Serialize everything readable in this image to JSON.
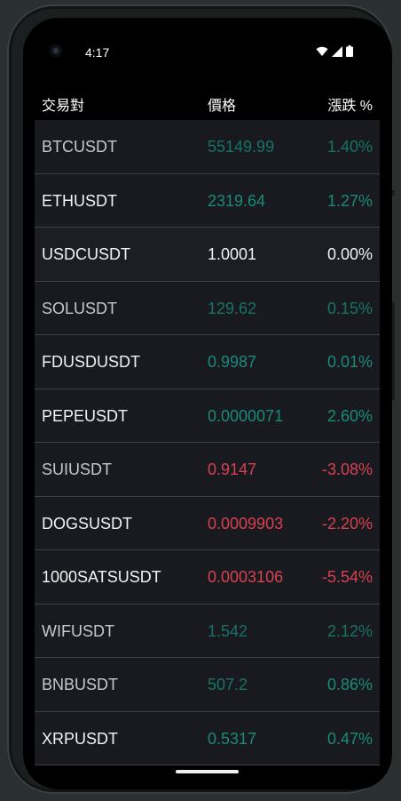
{
  "status_bar": {
    "time": "4:17"
  },
  "header": {
    "pair_label": "交易對",
    "price_label": "價格",
    "change_label": "漲跌 %"
  },
  "tickers": [
    {
      "symbol": "BTCUSDT",
      "price": "55149.99",
      "change": "1.40%",
      "trend": "up"
    },
    {
      "symbol": "ETHUSDT",
      "price": "2319.64",
      "change": "1.27%",
      "trend": "up"
    },
    {
      "symbol": "USDCUSDT",
      "price": "1.0001",
      "change": "0.00%",
      "trend": "flat"
    },
    {
      "symbol": "SOLUSDT",
      "price": "129.62",
      "change": "0.15%",
      "trend": "up"
    },
    {
      "symbol": "FDUSDUSDT",
      "price": "0.9987",
      "change": "0.01%",
      "trend": "up"
    },
    {
      "symbol": "PEPEUSDT",
      "price": "0.0000071",
      "change": "2.60%",
      "trend": "up"
    },
    {
      "symbol": "SUIUSDT",
      "price": "0.9147",
      "change": "-3.08%",
      "trend": "down"
    },
    {
      "symbol": "DOGSUSDT",
      "price": "0.0009903",
      "change": "-2.20%",
      "trend": "down"
    },
    {
      "symbol": "1000SATSUSDT",
      "price": "0.0003106",
      "change": "-5.54%",
      "trend": "down"
    },
    {
      "symbol": "WIFUSDT",
      "price": "1.542",
      "change": "2.12%",
      "trend": "up"
    },
    {
      "symbol": "BNBUSDT",
      "price": "507.2",
      "change": "0.86%",
      "trend": "up"
    },
    {
      "symbol": "XRPUSDT",
      "price": "0.5317",
      "change": "0.47%",
      "trend": "up"
    }
  ],
  "colors": {
    "up": "#1b8a7a",
    "down": "#d9414f",
    "flat": "#f2f3f5",
    "row_bg": "#181a20",
    "divider": "#3d4046"
  },
  "icons": {
    "status": [
      "wifi-icon",
      "signal-icon",
      "battery-icon"
    ],
    "camera": "front-camera-icon"
  }
}
